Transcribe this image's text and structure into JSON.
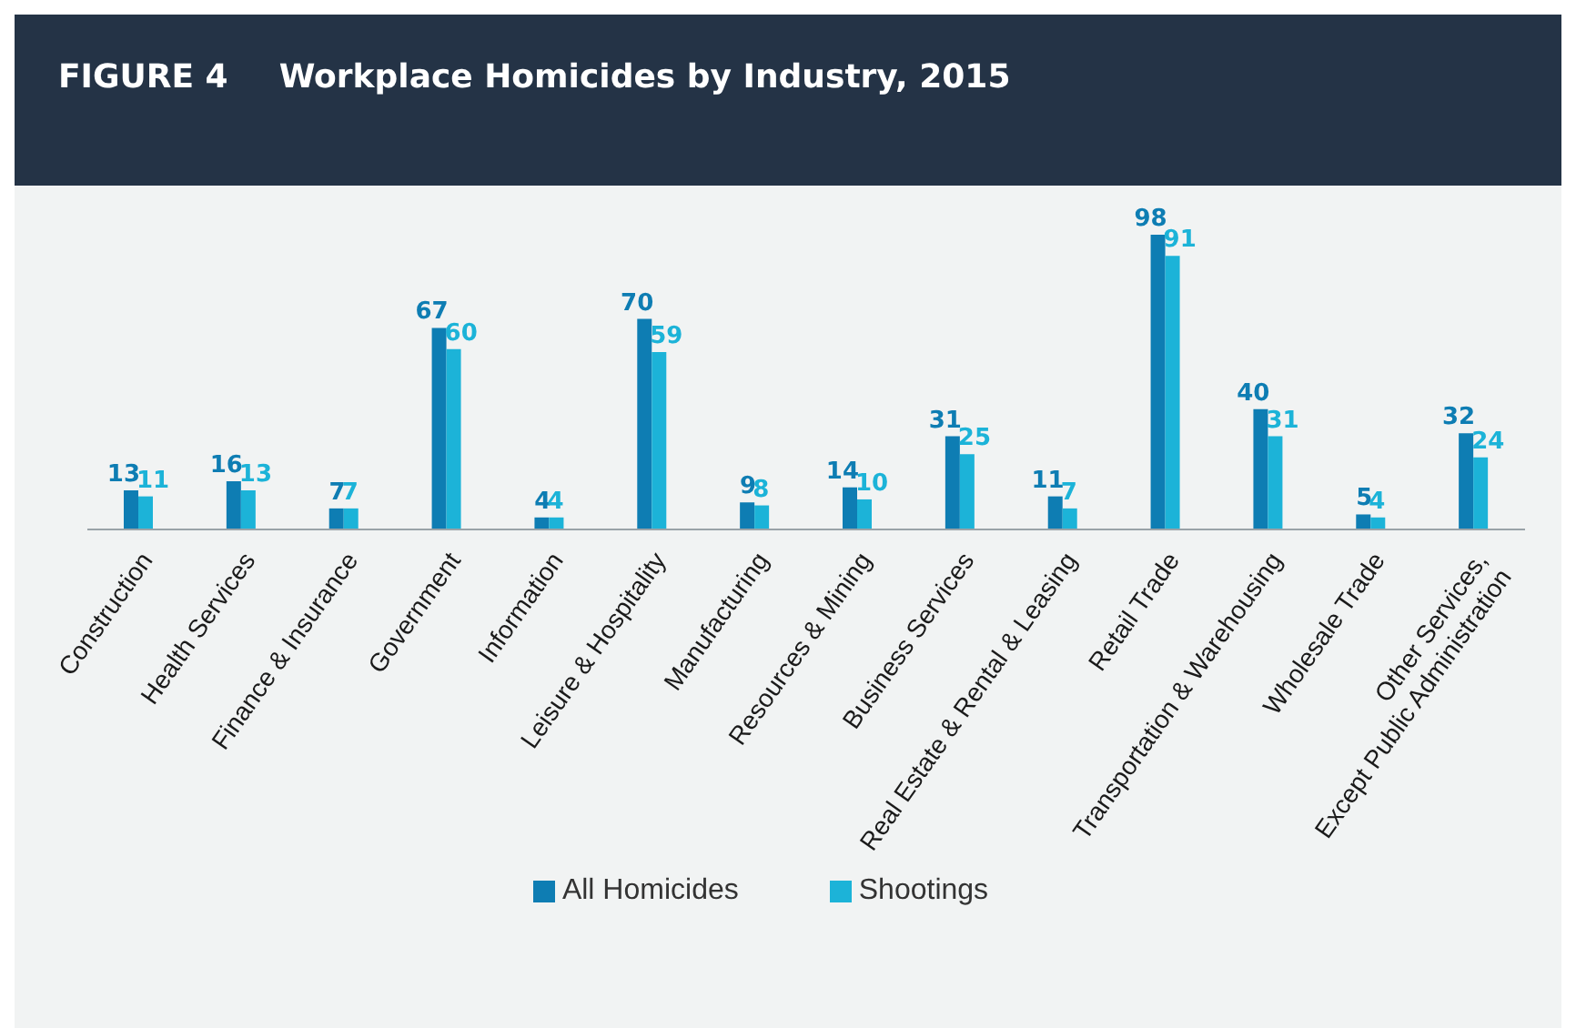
{
  "chart_data": {
    "type": "bar",
    "title": "Workplace Homicides by Industry, 2015",
    "annotations": [
      "FIGURE 4"
    ],
    "categories": [
      "Construction",
      "Health Services",
      "Finance & Insurance",
      "Government",
      "Information",
      "Leisure & Hospitality",
      "Manufacturing",
      "Resources & Mining",
      "Business Services",
      "Real Estate & Rental & Leasing",
      "Retail Trade",
      "Transportation & Warehousing",
      "Wholesale Trade",
      "Other Services, Except Public Administration"
    ],
    "series": [
      {
        "name": "All Homicides",
        "color": "#0e7db3",
        "values": [
          13,
          16,
          7,
          67,
          4,
          70,
          9,
          14,
          31,
          11,
          98,
          40,
          5,
          32
        ]
      },
      {
        "name": "Shootings",
        "color": "#1cb3d8",
        "values": [
          11,
          13,
          7,
          60,
          4,
          59,
          8,
          10,
          25,
          7,
          91,
          31,
          4,
          24
        ]
      }
    ],
    "data_labels": true,
    "legend": "bottom"
  }
}
